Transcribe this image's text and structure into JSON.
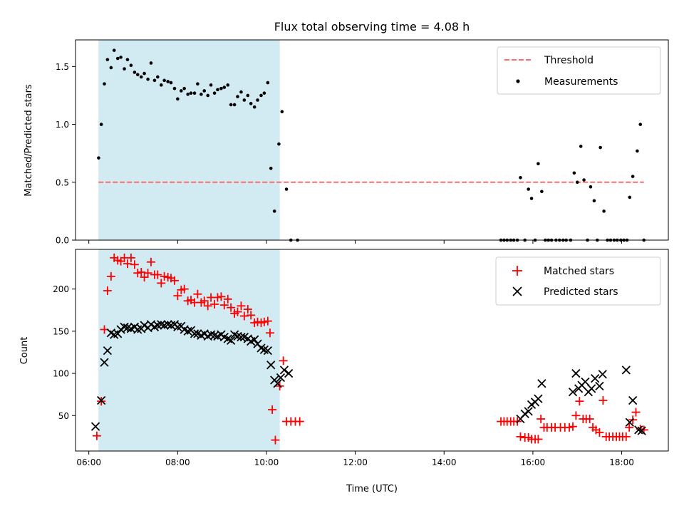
{
  "figure": {
    "title": "Flux total observing time = 4.08 h",
    "xlabel": "Time (UTC)",
    "xticks": [
      "06:00",
      "08:00",
      "10:00",
      "12:00",
      "14:00",
      "16:00",
      "18:00"
    ]
  },
  "colors": {
    "shade": "#add8e6",
    "threshold": "#ff6b6b",
    "measurement": "#000000",
    "matched": "#ff0000",
    "predicted": "#000000"
  },
  "chart_data": [
    {
      "type": "scatter",
      "ylabel": "Matched/Predicted stars",
      "x_unit": "hours UTC",
      "xlim": [
        5.7,
        19.05
      ],
      "ylim": [
        0,
        1.73
      ],
      "yticks": [
        "0.0",
        "0.5",
        "1.0",
        "1.5"
      ],
      "shaded_interval": [
        "06:13",
        "10:18"
      ],
      "legend": {
        "position": "top-right",
        "threshold_label": "Threshold",
        "measurements_label": "Measurements"
      },
      "threshold": {
        "y": 0.5,
        "x_range": [
          "06:13",
          "18:30"
        ]
      },
      "measurements": [
        [
          6.22,
          0.71
        ],
        [
          6.28,
          1.0
        ],
        [
          6.35,
          1.35
        ],
        [
          6.42,
          1.56
        ],
        [
          6.5,
          1.49
        ],
        [
          6.57,
          1.64
        ],
        [
          6.65,
          1.57
        ],
        [
          6.72,
          1.58
        ],
        [
          6.8,
          1.48
        ],
        [
          6.87,
          1.56
        ],
        [
          6.95,
          1.51
        ],
        [
          7.03,
          1.45
        ],
        [
          7.1,
          1.43
        ],
        [
          7.18,
          1.41
        ],
        [
          7.25,
          1.44
        ],
        [
          7.33,
          1.39
        ],
        [
          7.4,
          1.53
        ],
        [
          7.48,
          1.38
        ],
        [
          7.55,
          1.41
        ],
        [
          7.63,
          1.34
        ],
        [
          7.7,
          1.38
        ],
        [
          7.78,
          1.37
        ],
        [
          7.85,
          1.36
        ],
        [
          7.93,
          1.31
        ],
        [
          8.0,
          1.22
        ],
        [
          8.08,
          1.29
        ],
        [
          8.15,
          1.31
        ],
        [
          8.23,
          1.26
        ],
        [
          8.3,
          1.27
        ],
        [
          8.38,
          1.27
        ],
        [
          8.45,
          1.35
        ],
        [
          8.53,
          1.26
        ],
        [
          8.6,
          1.29
        ],
        [
          8.68,
          1.25
        ],
        [
          8.75,
          1.34
        ],
        [
          8.83,
          1.27
        ],
        [
          8.9,
          1.3
        ],
        [
          8.98,
          1.31
        ],
        [
          9.05,
          1.32
        ],
        [
          9.13,
          1.34
        ],
        [
          9.2,
          1.17
        ],
        [
          9.28,
          1.17
        ],
        [
          9.35,
          1.24
        ],
        [
          9.43,
          1.28
        ],
        [
          9.5,
          1.21
        ],
        [
          9.58,
          1.25
        ],
        [
          9.65,
          1.18
        ],
        [
          9.73,
          1.15
        ],
        [
          9.8,
          1.21
        ],
        [
          9.88,
          1.25
        ],
        [
          9.95,
          1.27
        ],
        [
          10.03,
          1.36
        ],
        [
          10.1,
          0.62
        ],
        [
          10.18,
          0.25
        ],
        [
          10.28,
          0.83
        ],
        [
          10.35,
          1.11
        ],
        [
          10.45,
          0.44
        ],
        [
          10.55,
          0.0
        ],
        [
          10.7,
          0.0
        ],
        [
          15.28,
          0.0
        ],
        [
          15.35,
          0.0
        ],
        [
          15.42,
          0.0
        ],
        [
          15.5,
          0.0
        ],
        [
          15.57,
          0.0
        ],
        [
          15.65,
          0.0
        ],
        [
          15.72,
          0.54
        ],
        [
          15.82,
          0.0
        ],
        [
          15.9,
          0.44
        ],
        [
          15.97,
          0.36
        ],
        [
          16.05,
          0.0
        ],
        [
          16.12,
          0.66
        ],
        [
          16.2,
          0.42
        ],
        [
          16.28,
          0.0
        ],
        [
          16.35,
          0.0
        ],
        [
          16.42,
          0.0
        ],
        [
          16.52,
          0.0
        ],
        [
          16.6,
          0.0
        ],
        [
          16.68,
          0.0
        ],
        [
          16.75,
          0.0
        ],
        [
          16.85,
          0.0
        ],
        [
          16.93,
          0.58
        ],
        [
          17.0,
          0.5
        ],
        [
          17.08,
          0.81
        ],
        [
          17.15,
          0.52
        ],
        [
          17.23,
          0.0
        ],
        [
          17.3,
          0.46
        ],
        [
          17.38,
          0.34
        ],
        [
          17.45,
          0.0
        ],
        [
          17.52,
          0.8
        ],
        [
          17.6,
          0.25
        ],
        [
          17.68,
          0.0
        ],
        [
          17.75,
          0.0
        ],
        [
          17.83,
          0.0
        ],
        [
          17.9,
          0.0
        ],
        [
          17.98,
          0.0
        ],
        [
          18.05,
          0.0
        ],
        [
          18.12,
          0.0
        ],
        [
          18.18,
          0.37
        ],
        [
          18.25,
          0.55
        ],
        [
          18.35,
          0.77
        ],
        [
          18.42,
          1.0
        ],
        [
          18.5,
          0.0
        ]
      ]
    },
    {
      "type": "scatter",
      "ylabel": "Count",
      "x_unit": "hours UTC",
      "xlim": [
        5.7,
        19.05
      ],
      "ylim": [
        8,
        247
      ],
      "yticks": [
        "50",
        "100",
        "150",
        "200"
      ],
      "shaded_interval": [
        "06:13",
        "10:18"
      ],
      "legend": {
        "position": "top-right",
        "matched_label": "Matched stars",
        "predicted_label": "Predicted stars"
      },
      "matched": [
        [
          6.18,
          26
        ],
        [
          6.28,
          67
        ],
        [
          6.35,
          152
        ],
        [
          6.42,
          198
        ],
        [
          6.5,
          215
        ],
        [
          6.57,
          237
        ],
        [
          6.65,
          234
        ],
        [
          6.72,
          233
        ],
        [
          6.8,
          237
        ],
        [
          6.87,
          230
        ],
        [
          6.95,
          237
        ],
        [
          7.03,
          229
        ],
        [
          7.1,
          219
        ],
        [
          7.18,
          220
        ],
        [
          7.25,
          214
        ],
        [
          7.33,
          219
        ],
        [
          7.4,
          232
        ],
        [
          7.48,
          217
        ],
        [
          7.55,
          217
        ],
        [
          7.63,
          207
        ],
        [
          7.7,
          215
        ],
        [
          7.78,
          214
        ],
        [
          7.85,
          213
        ],
        [
          7.93,
          210
        ],
        [
          8.0,
          192
        ],
        [
          8.08,
          199
        ],
        [
          8.15,
          200
        ],
        [
          8.23,
          186
        ],
        [
          8.3,
          187
        ],
        [
          8.38,
          184
        ],
        [
          8.45,
          194
        ],
        [
          8.53,
          184
        ],
        [
          8.6,
          186
        ],
        [
          8.68,
          180
        ],
        [
          8.75,
          190
        ],
        [
          8.83,
          182
        ],
        [
          8.9,
          190
        ],
        [
          8.98,
          191
        ],
        [
          9.05,
          181
        ],
        [
          9.13,
          188
        ],
        [
          9.2,
          178
        ],
        [
          9.28,
          171
        ],
        [
          9.35,
          173
        ],
        [
          9.43,
          180
        ],
        [
          9.5,
          168
        ],
        [
          9.58,
          176
        ],
        [
          9.65,
          169
        ],
        [
          9.73,
          160
        ],
        [
          9.8,
          161
        ],
        [
          9.88,
          160
        ],
        [
          9.95,
          161
        ],
        [
          10.03,
          162
        ],
        [
          10.08,
          148
        ],
        [
          10.13,
          57
        ],
        [
          10.2,
          21
        ],
        [
          10.3,
          85
        ],
        [
          10.38,
          115
        ],
        [
          10.45,
          43
        ],
        [
          10.55,
          43
        ],
        [
          10.65,
          43
        ],
        [
          10.75,
          43
        ],
        [
          15.28,
          43
        ],
        [
          15.35,
          43
        ],
        [
          15.42,
          43
        ],
        [
          15.5,
          43
        ],
        [
          15.57,
          43
        ],
        [
          15.65,
          43
        ],
        [
          15.72,
          25
        ],
        [
          15.82,
          24
        ],
        [
          15.9,
          24
        ],
        [
          15.97,
          22
        ],
        [
          16.05,
          22
        ],
        [
          16.12,
          22
        ],
        [
          16.18,
          46
        ],
        [
          16.25,
          36
        ],
        [
          16.32,
          36
        ],
        [
          16.42,
          36
        ],
        [
          16.5,
          36
        ],
        [
          16.62,
          36
        ],
        [
          16.72,
          36
        ],
        [
          16.82,
          36
        ],
        [
          16.9,
          37
        ],
        [
          16.97,
          50
        ],
        [
          17.05,
          67
        ],
        [
          17.13,
          46
        ],
        [
          17.2,
          46
        ],
        [
          17.28,
          46
        ],
        [
          17.35,
          36
        ],
        [
          17.42,
          33
        ],
        [
          17.5,
          30
        ],
        [
          17.58,
          68
        ],
        [
          17.65,
          25
        ],
        [
          17.72,
          25
        ],
        [
          17.8,
          25
        ],
        [
          17.88,
          25
        ],
        [
          17.95,
          25
        ],
        [
          18.02,
          25
        ],
        [
          18.1,
          25
        ],
        [
          18.17,
          36
        ],
        [
          18.25,
          45
        ],
        [
          18.32,
          54
        ],
        [
          18.42,
          34
        ],
        [
          18.5,
          33
        ]
      ],
      "predicted": [
        [
          6.15,
          37
        ],
        [
          6.28,
          68
        ],
        [
          6.35,
          113
        ],
        [
          6.42,
          127
        ],
        [
          6.5,
          148
        ],
        [
          6.57,
          146
        ],
        [
          6.65,
          147
        ],
        [
          6.72,
          152
        ],
        [
          6.8,
          155
        ],
        [
          6.87,
          154
        ],
        [
          6.95,
          153
        ],
        [
          7.03,
          155
        ],
        [
          7.1,
          152
        ],
        [
          7.18,
          153
        ],
        [
          7.25,
          157
        ],
        [
          7.33,
          154
        ],
        [
          7.4,
          158
        ],
        [
          7.48,
          155
        ],
        [
          7.55,
          157
        ],
        [
          7.63,
          158
        ],
        [
          7.7,
          157
        ],
        [
          7.78,
          158
        ],
        [
          7.85,
          157
        ],
        [
          7.93,
          158
        ],
        [
          8.0,
          155
        ],
        [
          8.08,
          156
        ],
        [
          8.15,
          152
        ],
        [
          8.23,
          150
        ],
        [
          8.3,
          151
        ],
        [
          8.38,
          147
        ],
        [
          8.45,
          147
        ],
        [
          8.53,
          145
        ],
        [
          8.6,
          147
        ],
        [
          8.68,
          144
        ],
        [
          8.75,
          146
        ],
        [
          8.83,
          145
        ],
        [
          8.9,
          144
        ],
        [
          8.98,
          146
        ],
        [
          9.05,
          143
        ],
        [
          9.13,
          141
        ],
        [
          9.2,
          139
        ],
        [
          9.28,
          146
        ],
        [
          9.35,
          144
        ],
        [
          9.43,
          143
        ],
        [
          9.5,
          143
        ],
        [
          9.58,
          141
        ],
        [
          9.65,
          138
        ],
        [
          9.73,
          140
        ],
        [
          9.8,
          135
        ],
        [
          9.88,
          130
        ],
        [
          9.95,
          128
        ],
        [
          10.03,
          127
        ],
        [
          10.1,
          110
        ],
        [
          10.18,
          92
        ],
        [
          10.25,
          88
        ],
        [
          10.32,
          95
        ],
        [
          10.4,
          104
        ],
        [
          10.5,
          100
        ],
        [
          15.72,
          46
        ],
        [
          15.82,
          52
        ],
        [
          15.9,
          55
        ],
        [
          15.97,
          63
        ],
        [
          16.05,
          66
        ],
        [
          16.12,
          70
        ],
        [
          16.2,
          88
        ],
        [
          16.9,
          78
        ],
        [
          16.97,
          100
        ],
        [
          17.03,
          82
        ],
        [
          17.1,
          86
        ],
        [
          17.18,
          90
        ],
        [
          17.25,
          78
        ],
        [
          17.32,
          82
        ],
        [
          17.4,
          94
        ],
        [
          17.5,
          85
        ],
        [
          17.57,
          99
        ],
        [
          18.1,
          104
        ],
        [
          18.18,
          42
        ],
        [
          18.25,
          68
        ],
        [
          18.38,
          33
        ],
        [
          18.45,
          32
        ]
      ]
    }
  ]
}
